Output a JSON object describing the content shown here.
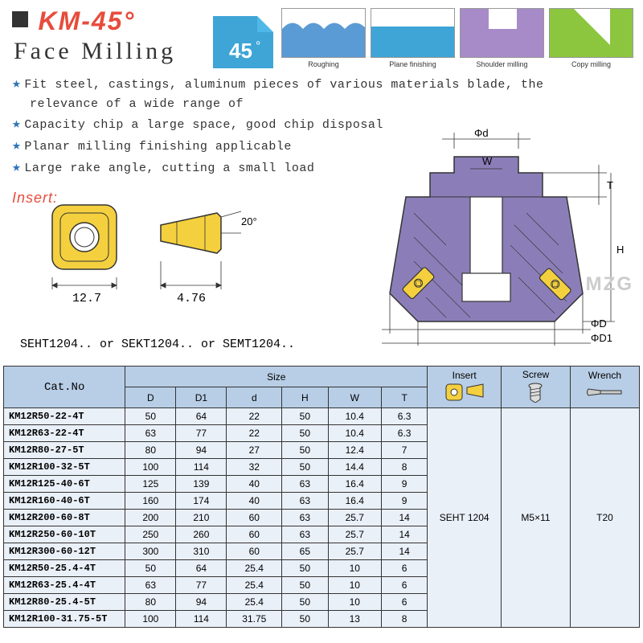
{
  "header": {
    "title": "KM-45°",
    "subtitle": "Face Milling",
    "angle_label": "45",
    "angle_deg": "°",
    "angle_color": "#3ea5d6"
  },
  "operations": [
    {
      "label": "Roughing",
      "color": "#5b9bd5"
    },
    {
      "label": "Plane finishing",
      "color": "#3ea5d6"
    },
    {
      "label": "Shoulder milling",
      "color": "#a78bc8"
    },
    {
      "label": "Copy milling",
      "color": "#8cc63f"
    }
  ],
  "features": [
    "Fit steel, castings, aluminum pieces of various materials blade, the",
    "relevance of a wide range of",
    "Capacity chip a large space, good chip disposal",
    "Planar milling finishing applicable",
    "Large rake angle, cutting a small load"
  ],
  "insert_label": "Insert:",
  "insert_dims": {
    "w": "12.7",
    "t": "4.76",
    "angle": "20°"
  },
  "insert_types": "SEHT1204.. or SEKT1204.. or SEMT1204..",
  "brand": "MZG",
  "diagram_labels": {
    "d": "Φd",
    "w": "W",
    "T": "T",
    "H": "H",
    "D": "ΦD",
    "D1": "ΦD1"
  },
  "table": {
    "headers": {
      "catno": "Cat.No",
      "size": "Size",
      "cols": [
        "D",
        "D1",
        "d",
        "H",
        "W",
        "T"
      ],
      "insert": "Insert",
      "screw": "Screw",
      "wrench": "Wrench"
    },
    "rows": [
      {
        "cat": "KM12R50-22-4T",
        "D": "50",
        "D1": "64",
        "d": "22",
        "H": "50",
        "W": "10.4",
        "T": "6.3"
      },
      {
        "cat": "KM12R63-22-4T",
        "D": "63",
        "D1": "77",
        "d": "22",
        "H": "50",
        "W": "10.4",
        "T": "6.3"
      },
      {
        "cat": "KM12R80-27-5T",
        "D": "80",
        "D1": "94",
        "d": "27",
        "H": "50",
        "W": "12.4",
        "T": "7"
      },
      {
        "cat": "KM12R100-32-5T",
        "D": "100",
        "D1": "114",
        "d": "32",
        "H": "50",
        "W": "14.4",
        "T": "8"
      },
      {
        "cat": "KM12R125-40-6T",
        "D": "125",
        "D1": "139",
        "d": "40",
        "H": "63",
        "W": "16.4",
        "T": "9"
      },
      {
        "cat": "KM12R160-40-6T",
        "D": "160",
        "D1": "174",
        "d": "40",
        "H": "63",
        "W": "16.4",
        "T": "9"
      },
      {
        "cat": "KM12R200-60-8T",
        "D": "200",
        "D1": "210",
        "d": "60",
        "H": "63",
        "W": "25.7",
        "T": "14"
      },
      {
        "cat": "KM12R250-60-10T",
        "D": "250",
        "D1": "260",
        "d": "60",
        "H": "63",
        "W": "25.7",
        "T": "14"
      },
      {
        "cat": "KM12R300-60-12T",
        "D": "300",
        "D1": "310",
        "d": "60",
        "H": "65",
        "W": "25.7",
        "T": "14"
      },
      {
        "cat": "KM12R50-25.4-4T",
        "D": "50",
        "D1": "64",
        "d": "25.4",
        "H": "50",
        "W": "10",
        "T": "6"
      },
      {
        "cat": "KM12R63-25.4-4T",
        "D": "63",
        "D1": "77",
        "d": "25.4",
        "H": "50",
        "W": "10",
        "T": "6"
      },
      {
        "cat": "KM12R80-25.4-5T",
        "D": "80",
        "D1": "94",
        "d": "25.4",
        "H": "50",
        "W": "10",
        "T": "6"
      },
      {
        "cat": "KM12R100-31.75-5T",
        "D": "100",
        "D1": "114",
        "d": "31.75",
        "H": "50",
        "W": "13",
        "T": "8"
      }
    ],
    "insert_val": "SEHT 1204",
    "screw_val": "M5×11",
    "wrench_val": "T20"
  },
  "colors": {
    "header_bg": "#b8cee6",
    "row_bg": "#eaf0f8",
    "red": "#e74c3c",
    "tool_body": "#8b7eb8",
    "insert_yellow": "#f4d03f"
  }
}
